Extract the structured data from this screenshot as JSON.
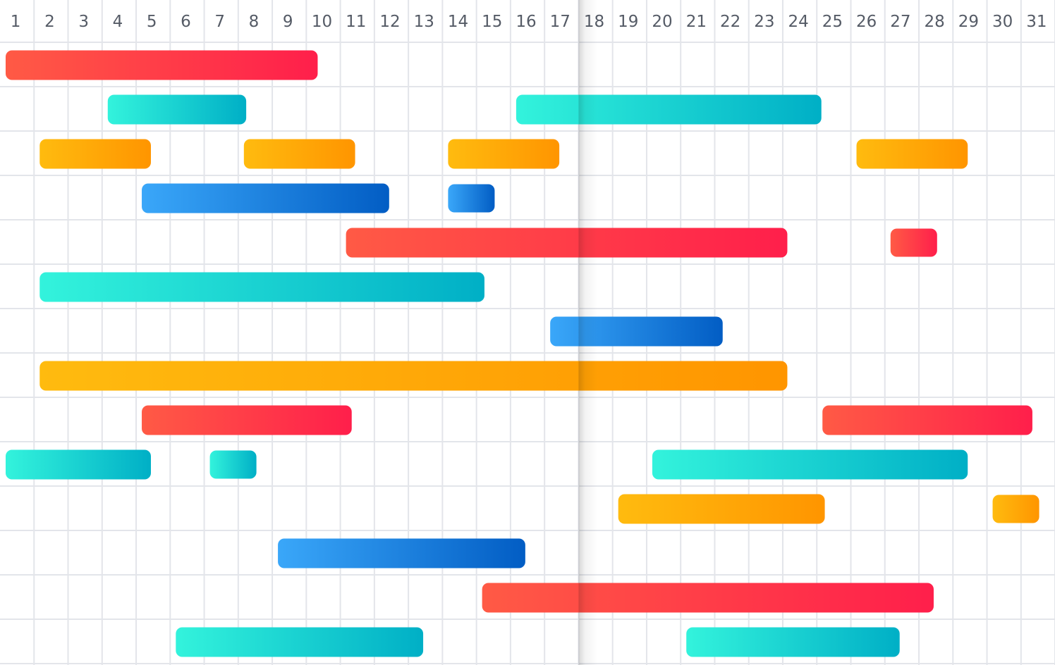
{
  "chart_data": {
    "type": "gantt",
    "title": "",
    "x": {
      "label": "",
      "ticks": [
        "1",
        "2",
        "3",
        "4",
        "5",
        "6",
        "7",
        "8",
        "9",
        "10",
        "11",
        "12",
        "13",
        "14",
        "15",
        "16",
        "17",
        "18",
        "19",
        "20",
        "21",
        "22",
        "23",
        "24",
        "25",
        "26",
        "27",
        "28",
        "29",
        "30",
        "31"
      ],
      "range": [
        1,
        31
      ]
    },
    "highlight_column": "18",
    "grid": true,
    "legend": "none",
    "palette": {
      "red": [
        "#ff5a45",
        "#ff1f4b"
      ],
      "teal": [
        "#33f3dc",
        "#00afc6"
      ],
      "orange": [
        "#ffbb0f",
        "#ff9500"
      ],
      "blue": [
        "#3aa7f9",
        "#025dc4"
      ]
    },
    "rows": [
      {
        "color": "red",
        "bars": [
          [
            1,
            9.5
          ]
        ]
      },
      {
        "color": "teal",
        "bars": [
          [
            4,
            7.4
          ],
          [
            16,
            24.3
          ]
        ]
      },
      {
        "color": "orange",
        "bars": [
          [
            2,
            4.6
          ],
          [
            8,
            10.6
          ],
          [
            14,
            16.6
          ],
          [
            26,
            28.6
          ]
        ]
      },
      {
        "color": "blue",
        "bars": [
          [
            5,
            11.6
          ],
          [
            14,
            14.7
          ]
        ]
      },
      {
        "color": "red",
        "bars": [
          [
            11,
            23.3
          ],
          [
            27,
            27.7
          ]
        ]
      },
      {
        "color": "teal",
        "bars": [
          [
            2,
            14.4
          ]
        ]
      },
      {
        "color": "blue",
        "bars": [
          [
            17,
            21.4
          ]
        ]
      },
      {
        "color": "orange",
        "bars": [
          [
            2,
            23.3
          ]
        ]
      },
      {
        "color": "red",
        "bars": [
          [
            5,
            10.5
          ],
          [
            25,
            30.5
          ]
        ]
      },
      {
        "color": "teal",
        "bars": [
          [
            1,
            4.6
          ],
          [
            7,
            7.7
          ],
          [
            20,
            28.6
          ]
        ]
      },
      {
        "color": "orange",
        "bars": [
          [
            19,
            24.4
          ],
          [
            30,
            30.7
          ]
        ]
      },
      {
        "color": "blue",
        "bars": [
          [
            9,
            15.6
          ]
        ]
      },
      {
        "color": "red",
        "bars": [
          [
            15,
            27.6
          ]
        ]
      },
      {
        "color": "teal",
        "bars": [
          [
            6,
            12.6
          ],
          [
            21,
            26.6
          ]
        ]
      }
    ]
  }
}
